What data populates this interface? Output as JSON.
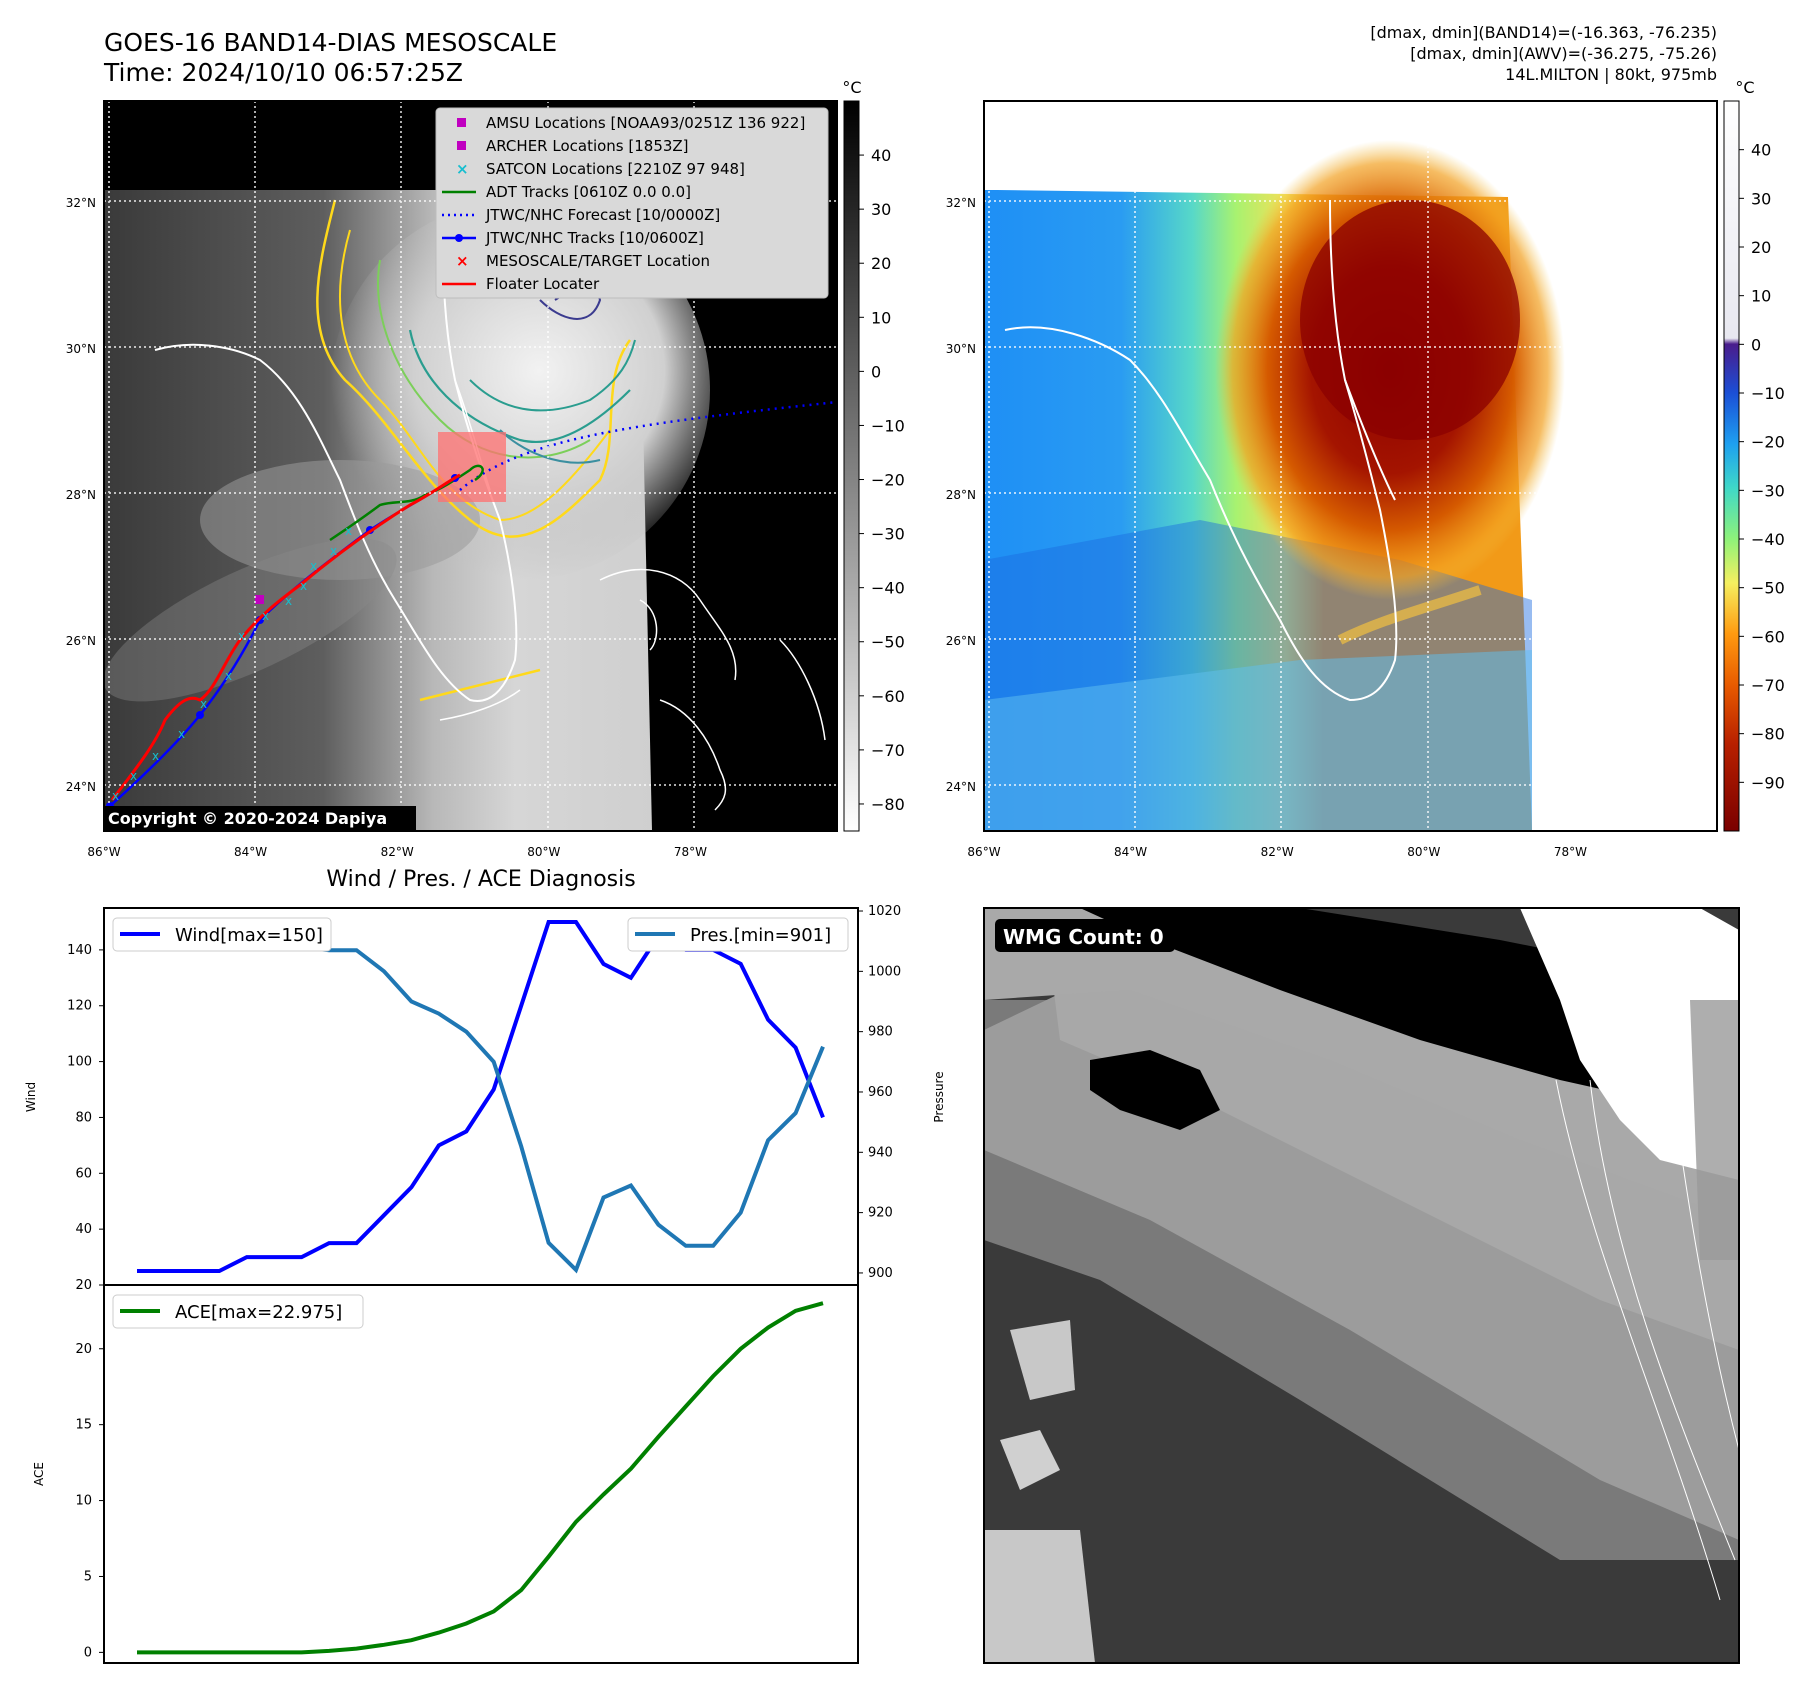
{
  "header": {
    "title_line1": "GOES-16 BAND14-DIAS MESOSCALE",
    "title_line2": "Time: 2024/10/10 06:57:25Z",
    "info_line1": "[dmax, dmin](BAND14)=(-16.363, -76.235)",
    "info_line2": "[dmax, dmin](AWV)=(-36.275, -75.26)",
    "info_line3": "14L.MILTON | 80kt, 975mb"
  },
  "map_axes": {
    "lat_labels": [
      "32°N",
      "30°N",
      "28°N",
      "26°N",
      "24°N"
    ],
    "lat_values": [
      32,
      30,
      28,
      26,
      24
    ],
    "lon_labels": [
      "86°W",
      "84°W",
      "82°W",
      "80°W",
      "78°W"
    ],
    "lon_values": [
      -86,
      -84,
      -82,
      -80,
      -78
    ],
    "lon_range": [
      -86,
      -76
    ],
    "lat_range": [
      23.4,
      33.4
    ]
  },
  "left_map": {
    "colorbar_unit": "°C",
    "colorbar_ticks": [
      "40",
      "30",
      "20",
      "10",
      "0",
      "−10",
      "−20",
      "−30",
      "−40",
      "−50",
      "−60",
      "−70",
      "−80"
    ],
    "colorbar_values": [
      40,
      30,
      20,
      10,
      0,
      -10,
      -20,
      -30,
      -40,
      -50,
      -60,
      -70,
      -80
    ],
    "colorbar_range": [
      -85,
      50
    ],
    "copyright": "Copyright © 2020-2024 Dapiya",
    "legend": [
      {
        "label": "AMSU Locations [NOAA93/0251Z 136 922]",
        "marker": "square",
        "color": "#c000c0"
      },
      {
        "label": "ARCHER Locations [1853Z]",
        "marker": "square",
        "color": "#c000c0"
      },
      {
        "label": "SATCON Locations [2210Z 97 948]",
        "marker": "x",
        "color": "#17becf"
      },
      {
        "label": "ADT Tracks [0610Z 0.0 0.0]",
        "marker": "line",
        "color": "#008000"
      },
      {
        "label": "JTWC/NHC Forecast [10/0000Z]",
        "marker": "dotted",
        "color": "#0000ff"
      },
      {
        "label": "JTWC/NHC Tracks [10/0600Z]",
        "marker": "line-dot",
        "color": "#0000ff"
      },
      {
        "label": "MESOSCALE/TARGET Location",
        "marker": "x",
        "color": "#ff0000"
      },
      {
        "label": "Floater Locater",
        "marker": "line",
        "color": "#ff0000"
      }
    ]
  },
  "right_map": {
    "colorbar_unit": "°C",
    "colorbar_ticks": [
      "40",
      "30",
      "20",
      "10",
      "0",
      "−10",
      "−20",
      "−30",
      "−40",
      "−50",
      "−60",
      "−70",
      "−80",
      "−90"
    ],
    "colorbar_values": [
      40,
      30,
      20,
      10,
      0,
      -10,
      -20,
      -30,
      -40,
      -50,
      -60,
      -70,
      -80,
      -90
    ],
    "colorbar_range": [
      -100,
      50
    ]
  },
  "wmg_panel": {
    "label": "WMG Count: 0"
  },
  "chart_data": [
    {
      "type": "line",
      "title": "Wind / Pres. / ACE Diagnosis",
      "ylabel": "Wind",
      "ylabel_right": "Pressure",
      "ylim": [
        20,
        155
      ],
      "ylim_right": [
        896,
        1021
      ],
      "yticks": [
        20,
        40,
        60,
        80,
        100,
        120,
        140
      ],
      "yticks_right": [
        900,
        920,
        940,
        960,
        980,
        1000,
        1020
      ],
      "series": [
        {
          "name": "Wind[max=150]",
          "color": "#0000ff",
          "axis": "left",
          "values": [
            25,
            25,
            25,
            25,
            30,
            30,
            30,
            35,
            35,
            45,
            55,
            70,
            75,
            90,
            120,
            150,
            150,
            135,
            130,
            145,
            140,
            140,
            135,
            115,
            105,
            80
          ]
        },
        {
          "name": "Pres.[min=901]",
          "color": "#1f77b4",
          "axis": "right",
          "values": [
            1015,
            1015,
            1015,
            1015,
            1010,
            1010,
            1008,
            1007,
            1007,
            1000,
            990,
            986,
            980,
            970,
            942,
            910,
            901,
            925,
            929,
            916,
            909,
            909,
            920,
            944,
            953,
            975
          ]
        }
      ]
    },
    {
      "type": "line",
      "ylabel": "ACE",
      "ylim": [
        -0.7,
        24.2
      ],
      "yticks": [
        0,
        5,
        10,
        15,
        20
      ],
      "series": [
        {
          "name": "ACE[max=22.975]",
          "color": "#008000",
          "values": [
            0,
            0,
            0,
            0,
            0,
            0,
            0,
            0.1,
            0.25,
            0.5,
            0.8,
            1.3,
            1.9,
            2.7,
            4.1,
            6.3,
            8.6,
            10.4,
            12.1,
            14.2,
            16.2,
            18.2,
            20.0,
            21.4,
            22.5,
            23.0
          ]
        }
      ]
    }
  ]
}
